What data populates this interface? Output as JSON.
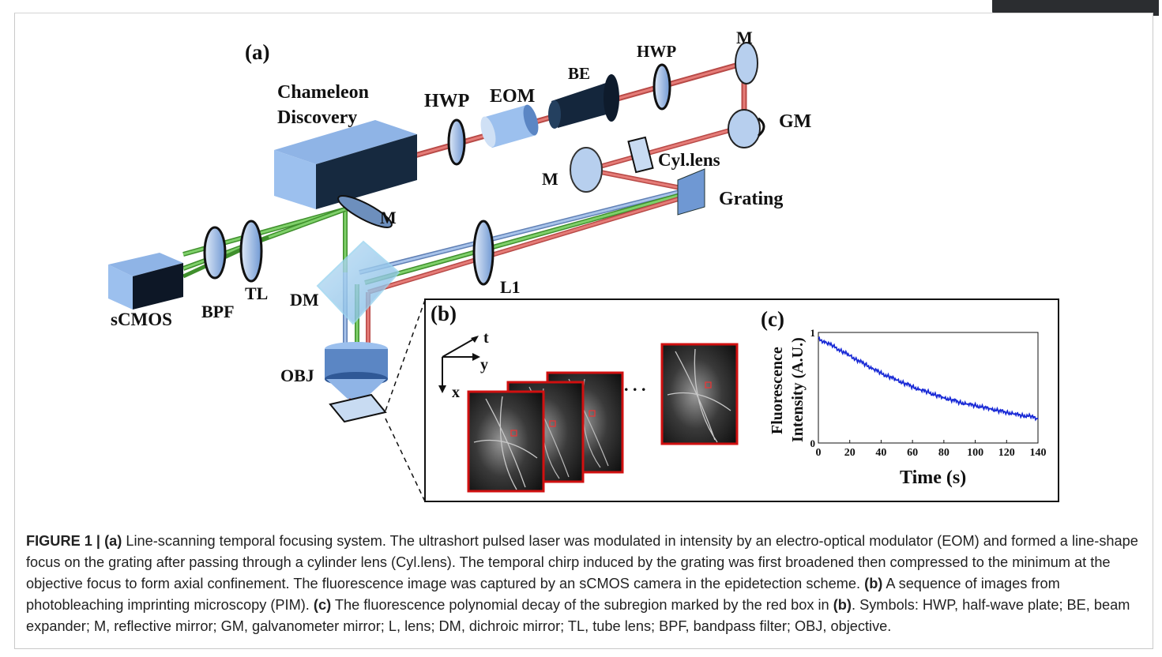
{
  "window": {
    "top_tab_label": ""
  },
  "figure": {
    "panel_a": {
      "label": "(a)",
      "components": {
        "laser": "Chameleon Discovery",
        "laser_line1": "Chameleon",
        "laser_line2": "Discovery",
        "hwp1": "HWP",
        "eom": "EOM",
        "be": "BE",
        "hwp2": "HWP",
        "mirror_top": "M",
        "gm": "GM",
        "cyl_lens": "Cyl.lens",
        "mirror_mid": "M",
        "grating": "Grating",
        "mirror_dm": "M",
        "l1": "L1",
        "dm": "DM",
        "tl": "TL",
        "bpf": "BPF",
        "scmos": "sCMOS",
        "obj": "OBJ"
      }
    },
    "panel_b": {
      "label": "(b)",
      "axis_t": "t",
      "axis_y": "y",
      "axis_x": "x",
      "ellipsis": ". . ."
    },
    "panel_c": {
      "label": "(c)",
      "ylabel_line1": "Fluorescence",
      "ylabel_line2": "Intensity (A.U.)",
      "xlabel": "Time (s)"
    }
  },
  "chart_data": {
    "type": "line",
    "title": "",
    "xlabel": "Time (s)",
    "ylabel": "Fluorescence Intensity (A.U.)",
    "xlim": [
      0,
      140
    ],
    "ylim": [
      0,
      1
    ],
    "xticks": [
      0,
      20,
      40,
      60,
      80,
      100,
      120,
      140
    ],
    "yticks": [
      0,
      1
    ],
    "series": [
      {
        "color": "#1a2bd6",
        "x": [
          0,
          5,
          10,
          15,
          20,
          25,
          30,
          35,
          40,
          45,
          50,
          55,
          60,
          65,
          70,
          75,
          80,
          85,
          90,
          95,
          100,
          105,
          110,
          115,
          120,
          125,
          130,
          135,
          140
        ],
        "values": [
          0.94,
          0.91,
          0.87,
          0.83,
          0.79,
          0.75,
          0.71,
          0.67,
          0.63,
          0.6,
          0.57,
          0.54,
          0.51,
          0.48,
          0.46,
          0.43,
          0.41,
          0.39,
          0.37,
          0.35,
          0.34,
          0.32,
          0.31,
          0.29,
          0.28,
          0.26,
          0.25,
          0.24,
          0.22
        ]
      }
    ]
  },
  "caption": {
    "prefix": "FIGURE 1 | ",
    "a_tag": "(a)",
    "text1": " Line-scanning temporal focusing system. The ultrashort pulsed laser was modulated in intensity by an electro-optical modulator (EOM) and formed a line-shape focus on the grating after passing through a cylinder lens (Cyl.lens). The temporal chirp induced by the grating was first broadened then compressed to the minimum at the objective focus to form axial confinement. The fluorescence image was captured by an sCMOS camera in the epidetection scheme. ",
    "b_tag": "(b)",
    "text2": " A sequence of images from photobleaching imprinting microscopy (PIM). ",
    "c_tag": "(c)",
    "text3": " The fluorescence polynomial decay of the subregion marked by the red box in ",
    "b_tag2": "(b)",
    "text4": ". Symbols: HWP, half-wave plate; BE, beam expander; M, reflective mirror; GM, galvanometer mirror; L, lens; DM, dichroic mirror; TL, tube lens; BPF, bandpass filter; OBJ, objective."
  },
  "colors": {
    "red_beam": "#d9534f",
    "green_beam": "#4caf3a",
    "blue_beam": "#7a9fd6",
    "optic_blue": "#8fb4e6",
    "curve_blue": "#1a2bd6",
    "image_border": "#d01010"
  }
}
